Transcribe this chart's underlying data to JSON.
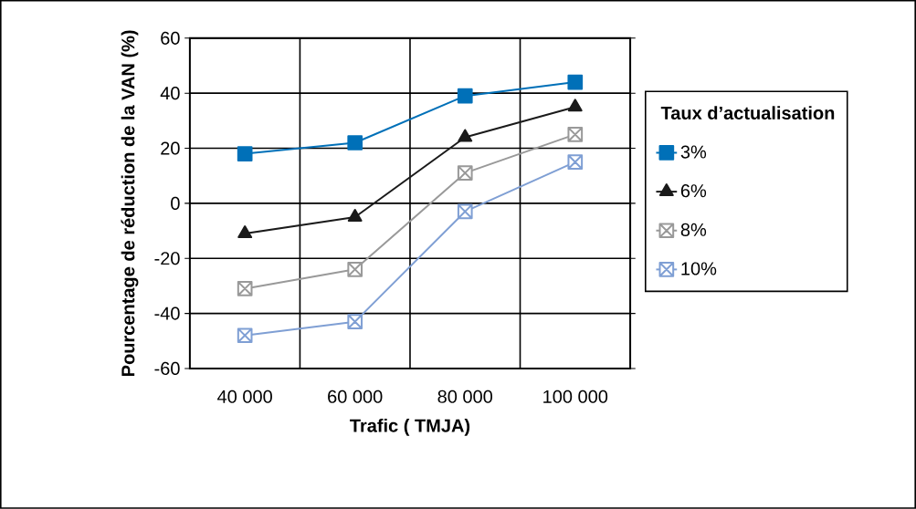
{
  "chart_data": {
    "type": "line",
    "xlabel": "Trafic ( TMJA)",
    "ylabel": "Pourcentage de réduction de la VAN (%)",
    "legend_title": "Taux d’actualisation",
    "categories": [
      "40 000",
      "60 000",
      "80 000",
      "100 000"
    ],
    "series": [
      {
        "name": "3%",
        "color": "#0070b8",
        "marker": "square",
        "values": [
          18,
          22,
          39,
          44
        ]
      },
      {
        "name": "6%",
        "color": "#1a1a1a",
        "marker": "triangle",
        "values": [
          -11,
          -5,
          24,
          35
        ]
      },
      {
        "name": "8%",
        "color": "#999999",
        "marker": "cross",
        "values": [
          -31,
          -24,
          11,
          25
        ]
      },
      {
        "name": "10%",
        "color": "#7f9fd4",
        "marker": "cross",
        "values": [
          -48,
          -43,
          -3,
          15
        ]
      }
    ],
    "ylim": [
      -60,
      60
    ],
    "yticks": [
      -60,
      -40,
      -20,
      0,
      20,
      40,
      60
    ],
    "grid": true,
    "legend": "right",
    "line_style": "solid"
  }
}
